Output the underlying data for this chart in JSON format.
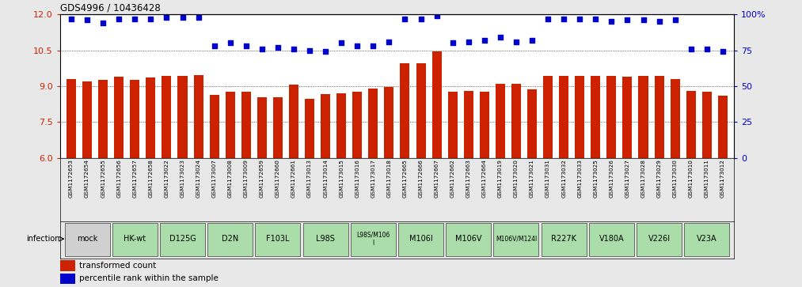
{
  "title": "GDS4996 / 10436428",
  "samples": [
    "GSM1172653",
    "GSM1172654",
    "GSM1172655",
    "GSM1172656",
    "GSM1172657",
    "GSM1172658",
    "GSM1173022",
    "GSM1173023",
    "GSM1173024",
    "GSM1173007",
    "GSM1173008",
    "GSM1173009",
    "GSM1172659",
    "GSM1172660",
    "GSM1172661",
    "GSM1173013",
    "GSM1173014",
    "GSM1173015",
    "GSM1173016",
    "GSM1173017",
    "GSM1173018",
    "GSM1172665",
    "GSM1172666",
    "GSM1172667",
    "GSM1172662",
    "GSM1172663",
    "GSM1172664",
    "GSM1173019",
    "GSM1173020",
    "GSM1173021",
    "GSM1173031",
    "GSM1173032",
    "GSM1173033",
    "GSM1173025",
    "GSM1173026",
    "GSM1173027",
    "GSM1173028",
    "GSM1173029",
    "GSM1173030",
    "GSM1173010",
    "GSM1173011",
    "GSM1173012"
  ],
  "bar_values": [
    9.3,
    9.2,
    9.25,
    9.4,
    9.25,
    9.35,
    9.42,
    9.44,
    9.46,
    8.62,
    8.75,
    8.75,
    8.55,
    8.55,
    9.05,
    8.48,
    8.68,
    8.7,
    8.75,
    8.9,
    8.95,
    9.95,
    9.95,
    10.45,
    8.75,
    8.8,
    8.78,
    9.08,
    9.08,
    8.85,
    9.42,
    9.42,
    9.42,
    9.42,
    9.42,
    9.4,
    9.42,
    9.42,
    9.28,
    8.8,
    8.78,
    8.6
  ],
  "percentile_values_pct": [
    97,
    96,
    94,
    97,
    97,
    97,
    98,
    98,
    98,
    78,
    80,
    78,
    76,
    77,
    76,
    75,
    74,
    80,
    78,
    78,
    81,
    97,
    97,
    99,
    80,
    81,
    82,
    84,
    81,
    82,
    97,
    97,
    97,
    97,
    95,
    96,
    96,
    95,
    96,
    76,
    76,
    74
  ],
  "groups": [
    {
      "label": "mock",
      "start": 0,
      "end": 2,
      "color": "#d0d0d0"
    },
    {
      "label": "HK-wt",
      "start": 3,
      "end": 5,
      "color": "#aaddaa"
    },
    {
      "label": "D125G",
      "start": 6,
      "end": 8,
      "color": "#aaddaa"
    },
    {
      "label": "D2N",
      "start": 9,
      "end": 11,
      "color": "#aaddaa"
    },
    {
      "label": "F103L",
      "start": 12,
      "end": 14,
      "color": "#aaddaa"
    },
    {
      "label": "L98S",
      "start": 15,
      "end": 17,
      "color": "#aaddaa"
    },
    {
      "label": "L98S/M106\nI",
      "start": 18,
      "end": 20,
      "color": "#aaddaa"
    },
    {
      "label": "M106I",
      "start": 21,
      "end": 23,
      "color": "#aaddaa"
    },
    {
      "label": "M106V",
      "start": 24,
      "end": 26,
      "color": "#aaddaa"
    },
    {
      "label": "M106V/M124I",
      "start": 27,
      "end": 29,
      "color": "#aaddaa"
    },
    {
      "label": "R227K",
      "start": 30,
      "end": 32,
      "color": "#aaddaa"
    },
    {
      "label": "V180A",
      "start": 33,
      "end": 35,
      "color": "#aaddaa"
    },
    {
      "label": "V226I",
      "start": 36,
      "end": 38,
      "color": "#aaddaa"
    },
    {
      "label": "V23A",
      "start": 39,
      "end": 41,
      "color": "#aaddaa"
    }
  ],
  "ylim_left": [
    6,
    12
  ],
  "ylim_right": [
    0,
    100
  ],
  "yticks_left": [
    6,
    7.5,
    9,
    10.5,
    12
  ],
  "yticks_right": [
    0,
    25,
    50,
    75,
    100
  ],
  "bar_color": "#cc2200",
  "dot_color": "#0000cc",
  "background_color": "#e8e8e8",
  "plot_bg": "#ffffff"
}
